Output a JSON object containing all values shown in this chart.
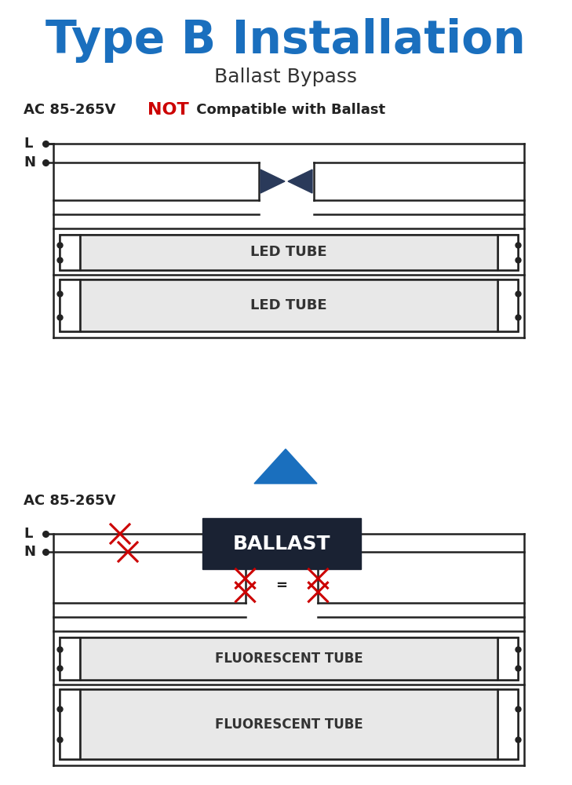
{
  "title": "Type B Installation",
  "subtitle": "Ballast Bypass",
  "title_color": "#1a6fbe",
  "subtitle_color": "#333333",
  "ac_label_top": "AC 85-265V",
  "not_label": "NOT",
  "compat_label": " Compatible with Ballast",
  "not_color": "#cc0000",
  "ac_label_bot": "AC 85-265V",
  "line_color": "#222222",
  "tube_fill": "#e8e8e8",
  "ballast_fill": "#1a2233",
  "ballast_text_color": "#ffffff",
  "cross_color": "#cc0000",
  "arrow_color": "#1a6fbe",
  "connector_color": "#2a3a5a",
  "bg_color": "#ffffff",
  "lw": 1.8
}
